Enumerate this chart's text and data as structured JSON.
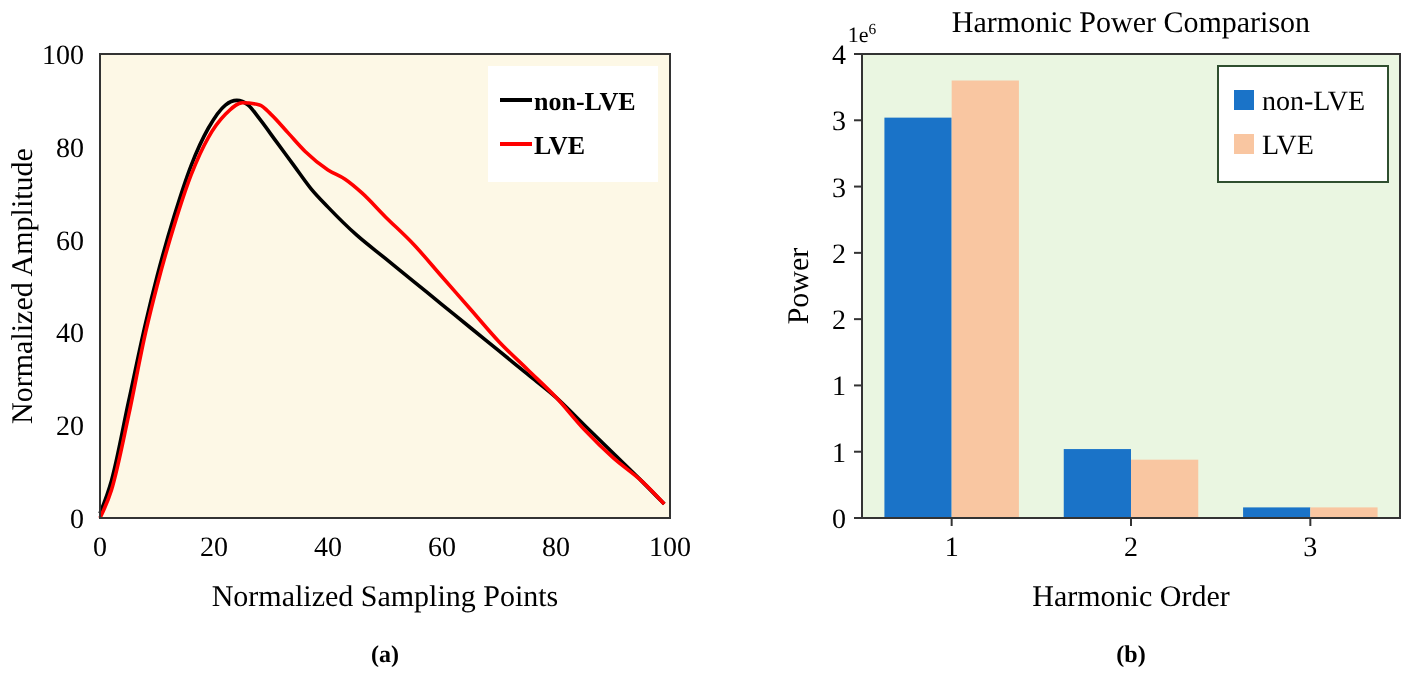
{
  "chart_data": [
    {
      "type": "line",
      "xlabel": "Normalized Sampling Points",
      "ylabel": "Normalized Amplitude",
      "xlim": [
        0,
        100
      ],
      "ylim": [
        0,
        100
      ],
      "xticks": [
        0,
        20,
        40,
        60,
        80,
        100
      ],
      "yticks": [
        0,
        20,
        40,
        60,
        80,
        100
      ],
      "legend": "top right",
      "annotations": [
        "(a)"
      ],
      "series": [
        {
          "name": "non-LVE",
          "color": "#000000",
          "x": [
            0,
            2,
            5,
            8,
            10,
            13,
            16,
            19,
            22,
            24,
            26,
            28,
            31,
            34,
            37,
            40,
            45,
            50,
            55,
            60,
            65,
            70,
            75,
            80,
            85,
            90,
            95,
            99
          ],
          "values": [
            1,
            8,
            25,
            42,
            52,
            65,
            76,
            84,
            89,
            90,
            89,
            86,
            81,
            76,
            71,
            67,
            61,
            56,
            51,
            46,
            41,
            36,
            31,
            26,
            20,
            14,
            8,
            3
          ]
        },
        {
          "name": "LVE",
          "color": "#ff0000",
          "x": [
            0,
            2,
            5,
            8,
            10,
            13,
            16,
            19,
            22,
            25,
            28,
            30,
            33,
            36,
            40,
            43,
            46,
            50,
            55,
            60,
            65,
            70,
            75,
            80,
            85,
            90,
            95,
            99
          ],
          "values": [
            0,
            6,
            22,
            40,
            50,
            63,
            74,
            82,
            87,
            89.5,
            89,
            87,
            83,
            79,
            75,
            73,
            70,
            65,
            59,
            52,
            45,
            38,
            32,
            26,
            19,
            13,
            8,
            3
          ]
        }
      ]
    },
    {
      "type": "bar",
      "title": "Harmonic Power Comparison",
      "xlabel": "Harmonic Order",
      "ylabel": "Power",
      "categories": [
        "1",
        "2",
        "3"
      ],
      "ylim": [
        0,
        3.5
      ],
      "yticks": [
        0,
        {
          "value": 0.5,
          "label": "1"
        },
        1,
        {
          "value": 1.5,
          "label": "2"
        },
        2,
        {
          "value": 2.5,
          "label": "3"
        },
        3,
        {
          "value": 3.5,
          "label": "4"
        }
      ],
      "legend": "top right",
      "annotations": [
        "1e$^{6}$",
        "(b)"
      ],
      "series": [
        {
          "name": "non-LVE",
          "color": "#1a73c8",
          "values": [
            3.02,
            0.52,
            0.08
          ]
        },
        {
          "name": "LVE",
          "color": "#f9c6a1",
          "values": [
            3.3,
            0.44,
            0.08
          ]
        }
      ]
    }
  ]
}
